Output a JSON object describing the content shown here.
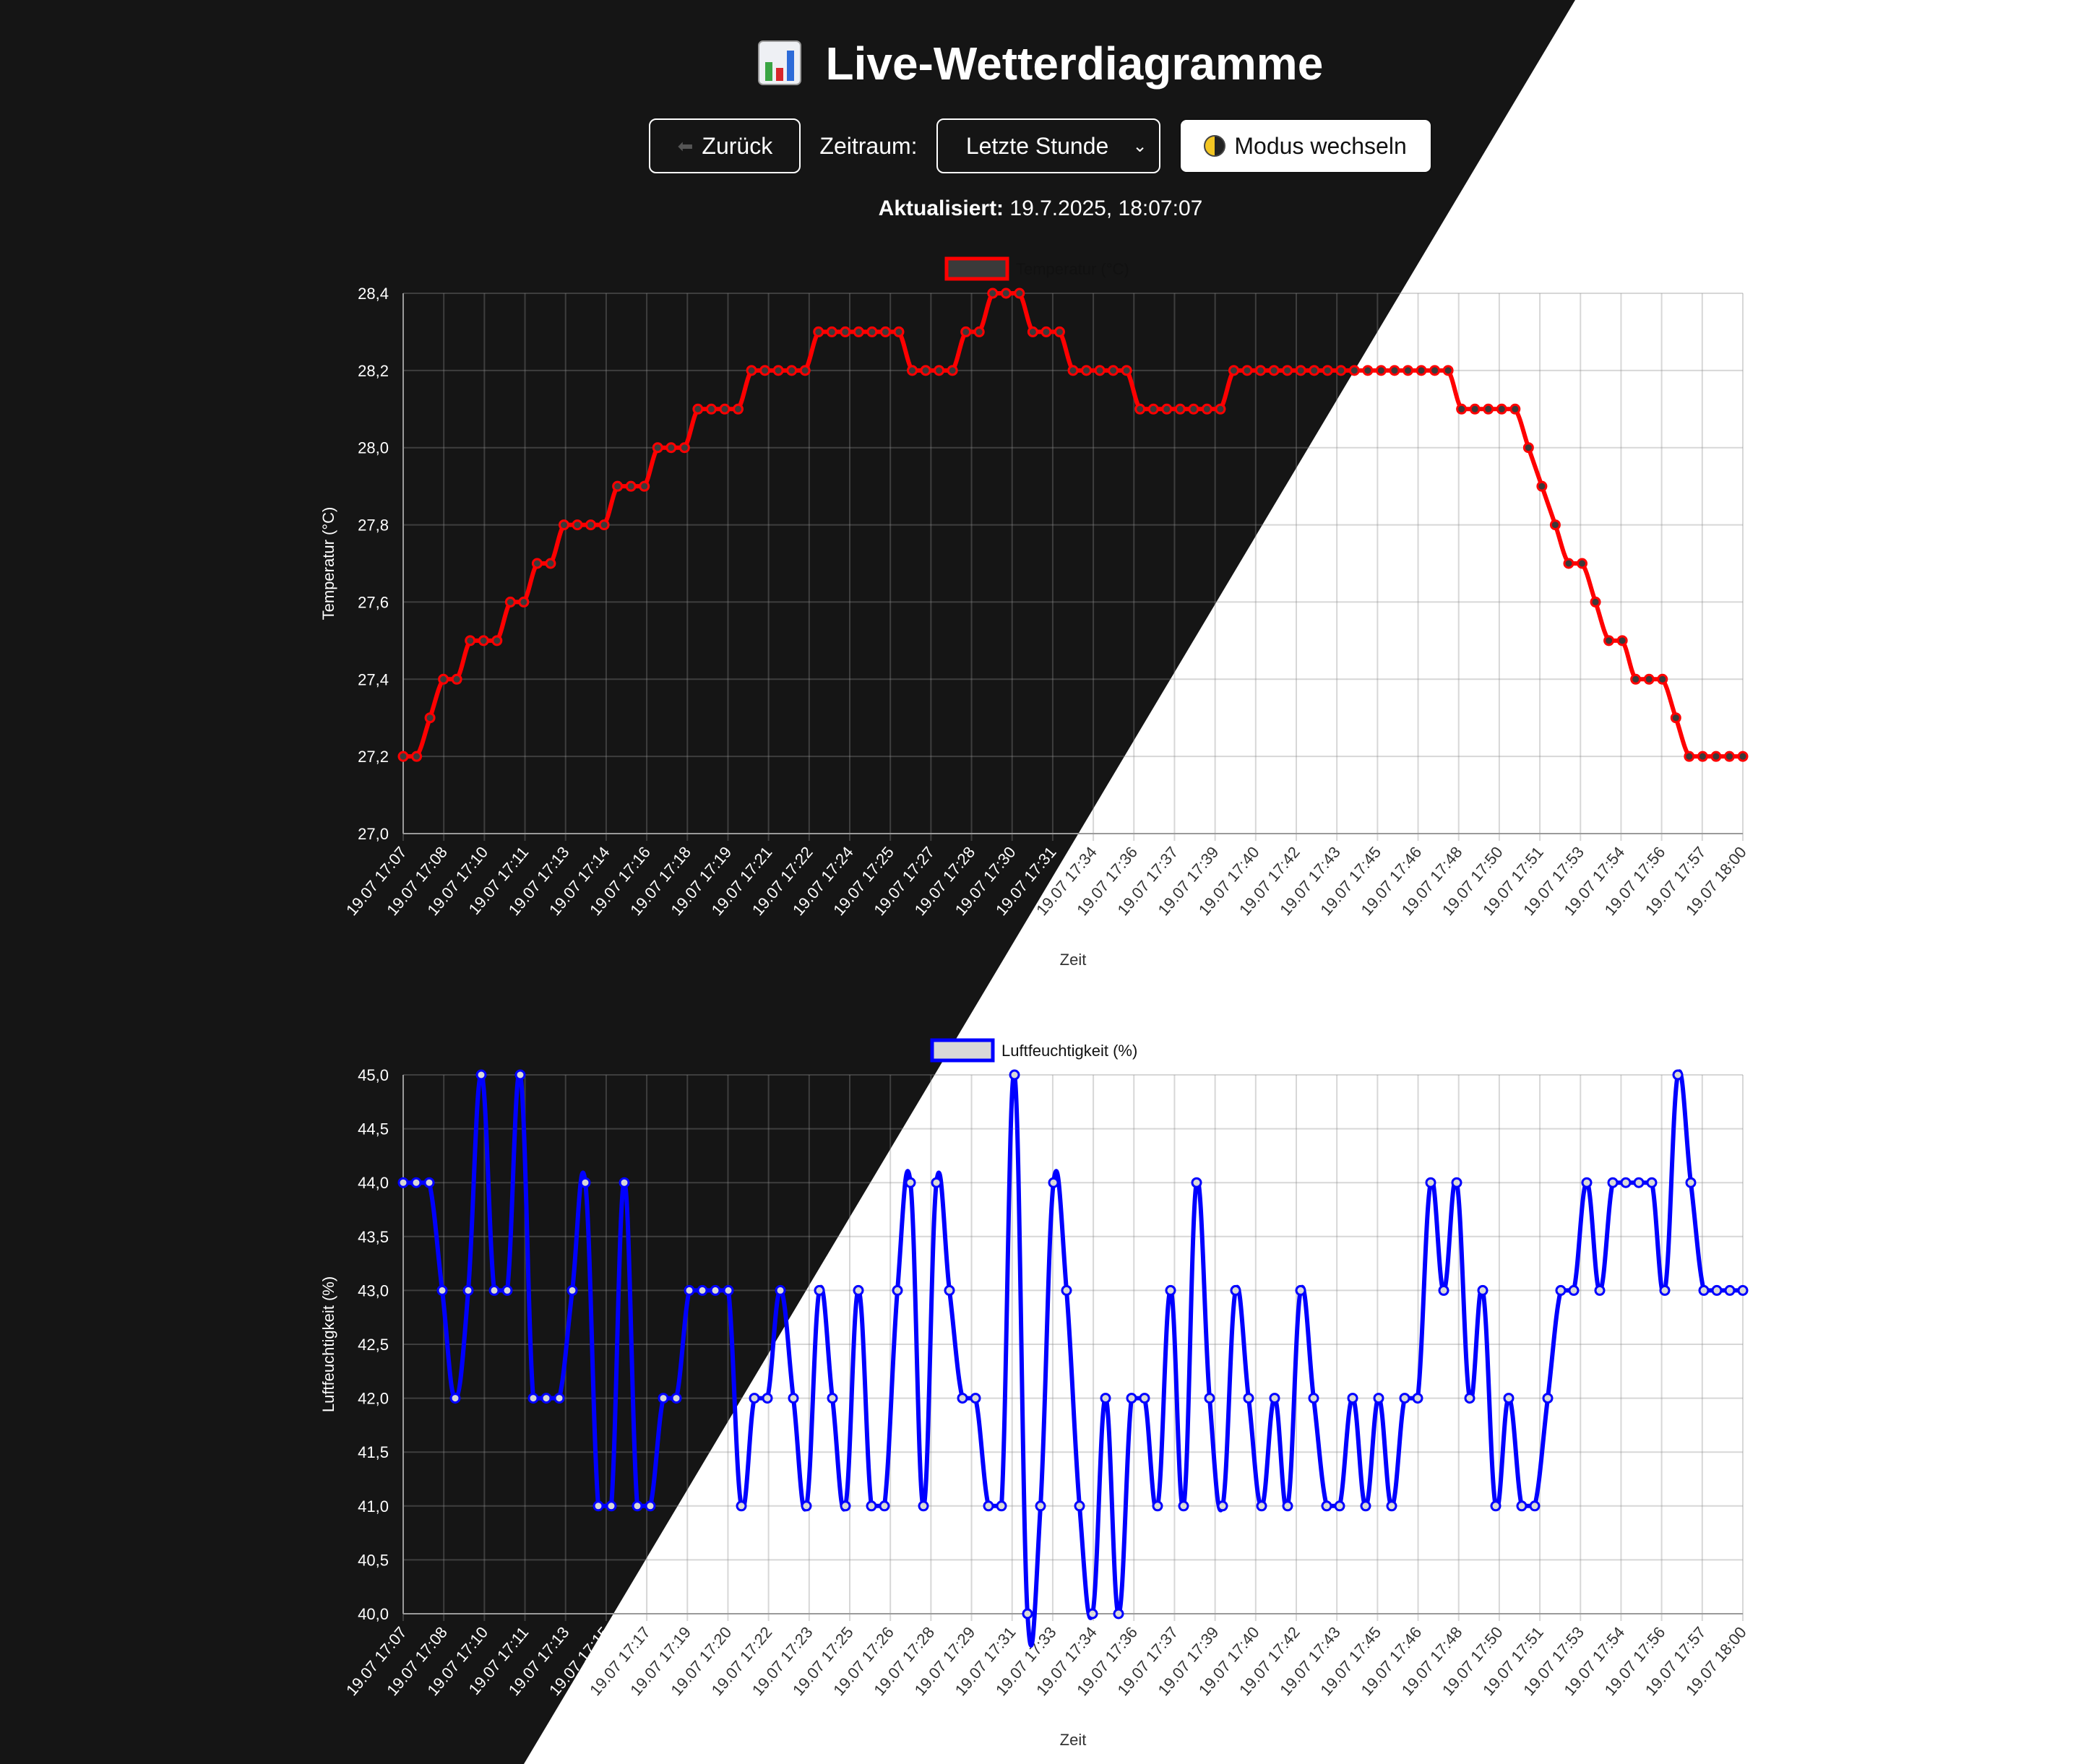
{
  "header": {
    "title_icon": "bar-chart-icon",
    "title": "Live-Wetterdiagramme",
    "back_label": "Zurück",
    "back_icon": "back-arrow-icon",
    "range_label": "Zeitraum:",
    "range_value": "Letzte Stunde",
    "mode_label": "Modus wechseln",
    "mode_icon": "half-moon-icon",
    "updated_label": "Aktualisiert:",
    "updated_value": "19.7.2025, 18:07:07"
  },
  "colors": {
    "dark_bg": "#151515",
    "light_bg": "#ffffff",
    "temperature": "#ff0000",
    "humidity": "#0000ff"
  },
  "chart_data": [
    {
      "type": "line",
      "series": [
        {
          "name": "Temperatur (°C)",
          "values": [
            27.2,
            27.2,
            27.3,
            27.4,
            27.4,
            27.5,
            27.5,
            27.5,
            27.6,
            27.6,
            27.7,
            27.7,
            27.8,
            27.8,
            27.8,
            27.8,
            27.9,
            27.9,
            27.9,
            28.0,
            28.0,
            28.0,
            28.1,
            28.1,
            28.1,
            28.1,
            28.2,
            28.2,
            28.2,
            28.2,
            28.2,
            28.3,
            28.3,
            28.3,
            28.3,
            28.3,
            28.3,
            28.3,
            28.2,
            28.2,
            28.2,
            28.2,
            28.3,
            28.3,
            28.4,
            28.4,
            28.4,
            28.3,
            28.3,
            28.3,
            28.2,
            28.2,
            28.2,
            28.2,
            28.2,
            28.1,
            28.1,
            28.1,
            28.1,
            28.1,
            28.1,
            28.1,
            28.2,
            28.2,
            28.2,
            28.2,
            28.2,
            28.2,
            28.2,
            28.2,
            28.2,
            28.2,
            28.2,
            28.2,
            28.2,
            28.2,
            28.2,
            28.2,
            28.2,
            28.1,
            28.1,
            28.1,
            28.1,
            28.1,
            28.0,
            27.9,
            27.8,
            27.7,
            27.7,
            27.6,
            27.5,
            27.5,
            27.4,
            27.4,
            27.4,
            27.3,
            27.2,
            27.2,
            27.2,
            27.2,
            27.2
          ]
        }
      ],
      "x_tick_labels": [
        "19.07 17:07",
        "19.07 17:08",
        "19.07 17:10",
        "19.07 17:11",
        "19.07 17:13",
        "19.07 17:14",
        "19.07 17:16",
        "19.07 17:18",
        "19.07 17:19",
        "19.07 17:21",
        "19.07 17:22",
        "19.07 17:24",
        "19.07 17:25",
        "19.07 17:27",
        "19.07 17:28",
        "19.07 17:30",
        "19.07 17:31",
        "19.07 17:34",
        "19.07 17:36",
        "19.07 17:37",
        "19.07 17:39",
        "19.07 17:40",
        "19.07 17:42",
        "19.07 17:43",
        "19.07 17:45",
        "19.07 17:46",
        "19.07 17:48",
        "19.07 17:50",
        "19.07 17:51",
        "19.07 17:53",
        "19.07 17:54",
        "19.07 17:56",
        "19.07 17:57",
        "19.07 18:00"
      ],
      "y_tick_labels": [
        "27,0",
        "27,2",
        "27,4",
        "27,6",
        "27,8",
        "28,0",
        "28,2",
        "28,4"
      ],
      "ylim": [
        27.0,
        28.4
      ],
      "xlabel": "Zeit",
      "ylabel": "Temperatur (°C)",
      "grid": true,
      "legend": "top-center"
    },
    {
      "type": "line",
      "series": [
        {
          "name": "Luftfeuchtigkeit (%)",
          "values": [
            44,
            44,
            44,
            43,
            42,
            43,
            45,
            43,
            43,
            45,
            42,
            42,
            42,
            43,
            44,
            41,
            41,
            44,
            41,
            41,
            42,
            42,
            43,
            43,
            43,
            43,
            41,
            42,
            42,
            43,
            42,
            41,
            43,
            42,
            41,
            43,
            41,
            41,
            43,
            44,
            41,
            44,
            43,
            42,
            42,
            41,
            41,
            45,
            40,
            41,
            44,
            43,
            41,
            40,
            42,
            40,
            42,
            42,
            41,
            43,
            41,
            44,
            42,
            41,
            43,
            42,
            41,
            42,
            41,
            43,
            42,
            41,
            41,
            42,
            41,
            42,
            41,
            42,
            42,
            44,
            43,
            44,
            42,
            43,
            41,
            42,
            41,
            41,
            42,
            43,
            43,
            44,
            43,
            44,
            44,
            44,
            44,
            43,
            45,
            44,
            43,
            43,
            43,
            43
          ]
        }
      ],
      "x_tick_labels": [
        "19.07 17:07",
        "19.07 17:08",
        "19.07 17:10",
        "19.07 17:11",
        "19.07 17:13",
        "19.07 17:15",
        "19.07 17:17",
        "19.07 17:19",
        "19.07 17:20",
        "19.07 17:22",
        "19.07 17:23",
        "19.07 17:25",
        "19.07 17:26",
        "19.07 17:28",
        "19.07 17:29",
        "19.07 17:31",
        "19.07 17:33",
        "19.07 17:34",
        "19.07 17:36",
        "19.07 17:37",
        "19.07 17:39",
        "19.07 17:40",
        "19.07 17:42",
        "19.07 17:43",
        "19.07 17:45",
        "19.07 17:46",
        "19.07 17:48",
        "19.07 17:50",
        "19.07 17:51",
        "19.07 17:53",
        "19.07 17:54",
        "19.07 17:56",
        "19.07 17:57",
        "19.07 18:00"
      ],
      "y_tick_labels": [
        "40,0",
        "40,5",
        "41,0",
        "41,5",
        "42,0",
        "42,5",
        "43,0",
        "43,5",
        "44,0",
        "44,5",
        "45,0"
      ],
      "ylim": [
        40.0,
        45.0
      ],
      "xlabel": "Zeit",
      "ylabel": "Luftfeuchtigkeit (%)",
      "grid": true,
      "legend": "top-center"
    }
  ]
}
